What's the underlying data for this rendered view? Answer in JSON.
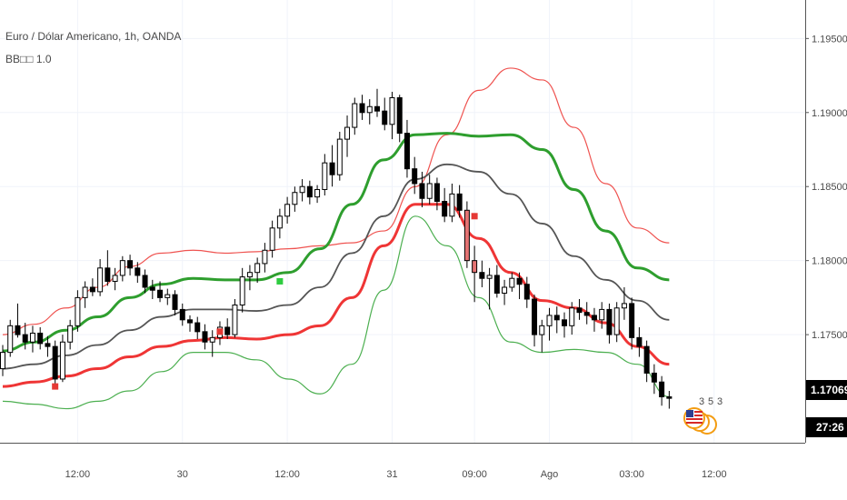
{
  "header": {
    "symbol_line": "Euro / Dólar Americano, 1h, OANDA",
    "indicator_line": "BB□□ 1.0"
  },
  "colors": {
    "up_candle_fill": "#ffffff",
    "down_candle_fill": "#000000",
    "down_candle_alt_fill": "#e57373",
    "outer_upper_band": "#ef5350",
    "inner_upper_band": "#2e9e2e",
    "basis": "#555555",
    "inner_lower_band": "#ef3535",
    "outer_lower_band": "#4caf50",
    "grid": "#f0f3fa",
    "price_badge": "#000000"
  },
  "price_axis": {
    "ticks": [
      "1.19500",
      "1.19000",
      "1.18500",
      "1.18000",
      "1.17500"
    ],
    "tick_values": [
      1.195,
      1.19,
      1.185,
      1.18,
      1.175
    ],
    "current_price": "1.17069",
    "countdown": "27:26"
  },
  "time_axis": {
    "ticks": [
      "12:00",
      "30",
      "12:00",
      "31",
      "09:00",
      "Ago",
      "03:00",
      "12:00"
    ],
    "tick_bars": [
      10,
      24,
      38,
      52,
      63,
      73,
      84,
      95
    ]
  },
  "events": {
    "numbers": [
      "3",
      "5",
      "3"
    ],
    "icon": "us-flag-icon"
  },
  "chart_data": {
    "type": "candlestick",
    "title": "Euro / Dólar Americano, 1h, OANDA",
    "ylim": [
      1.1677,
      1.1976
    ],
    "grid": true,
    "candles": [
      [
        1.1727,
        1.1743,
        1.1722,
        1.1738
      ],
      [
        1.1738,
        1.176,
        1.1735,
        1.1756
      ],
      [
        1.1756,
        1.1771,
        1.1748,
        1.175
      ],
      [
        1.175,
        1.1758,
        1.174,
        1.1745
      ],
      [
        1.1745,
        1.1756,
        1.1738,
        1.1751
      ],
      [
        1.1751,
        1.1755,
        1.174,
        1.1744
      ],
      [
        1.1744,
        1.1749,
        1.1735,
        1.1742
      ],
      [
        1.1742,
        1.1746,
        1.1715,
        1.172
      ],
      [
        1.172,
        1.175,
        1.1718,
        1.1745
      ],
      [
        1.1745,
        1.176,
        1.174,
        1.1756
      ],
      [
        1.1756,
        1.178,
        1.1752,
        1.1775
      ],
      [
        1.1775,
        1.1786,
        1.1768,
        1.1782
      ],
      [
        1.1782,
        1.1788,
        1.1776,
        1.1779
      ],
      [
        1.1779,
        1.1801,
        1.1776,
        1.1795
      ],
      [
        1.1795,
        1.1807,
        1.1783,
        1.1786
      ],
      [
        1.1786,
        1.1795,
        1.178,
        1.179
      ],
      [
        1.179,
        1.1803,
        1.1786,
        1.18
      ],
      [
        1.18,
        1.1804,
        1.179,
        1.1795
      ],
      [
        1.1795,
        1.1799,
        1.1785,
        1.179
      ],
      [
        1.179,
        1.1794,
        1.1778,
        1.1782
      ],
      [
        1.1782,
        1.1787,
        1.1774,
        1.178
      ],
      [
        1.178,
        1.1786,
        1.1772,
        1.1775
      ],
      [
        1.1775,
        1.1781,
        1.177,
        1.1777
      ],
      [
        1.1777,
        1.178,
        1.1763,
        1.1767
      ],
      [
        1.1767,
        1.1771,
        1.1756,
        1.176
      ],
      [
        1.176,
        1.1763,
        1.1752,
        1.1758
      ],
      [
        1.1758,
        1.1762,
        1.1747,
        1.1752
      ],
      [
        1.1752,
        1.1757,
        1.174,
        1.1745
      ],
      [
        1.1745,
        1.1753,
        1.1735,
        1.1748
      ],
      [
        1.1748,
        1.1759,
        1.1743,
        1.1755
      ],
      [
        1.1755,
        1.1761,
        1.1747,
        1.175
      ],
      [
        1.175,
        1.1774,
        1.1748,
        1.177
      ],
      [
        1.177,
        1.1795,
        1.1765,
        1.1789
      ],
      [
        1.1789,
        1.1797,
        1.178,
        1.1792
      ],
      [
        1.1792,
        1.1802,
        1.1785,
        1.1798
      ],
      [
        1.1798,
        1.1812,
        1.1792,
        1.1807
      ],
      [
        1.1807,
        1.1827,
        1.1802,
        1.1822
      ],
      [
        1.1822,
        1.1835,
        1.1815,
        1.183
      ],
      [
        1.183,
        1.1843,
        1.1825,
        1.1838
      ],
      [
        1.1838,
        1.185,
        1.1833,
        1.1846
      ],
      [
        1.1846,
        1.1855,
        1.184,
        1.185
      ],
      [
        1.185,
        1.1854,
        1.1838,
        1.1843
      ],
      [
        1.1843,
        1.1851,
        1.1839,
        1.1848
      ],
      [
        1.1848,
        1.1872,
        1.1844,
        1.1866
      ],
      [
        1.1866,
        1.1878,
        1.185,
        1.1858
      ],
      [
        1.1858,
        1.1887,
        1.1854,
        1.1882
      ],
      [
        1.1882,
        1.1898,
        1.187,
        1.189
      ],
      [
        1.189,
        1.191,
        1.1885,
        1.1906
      ],
      [
        1.1906,
        1.1912,
        1.1895,
        1.19
      ],
      [
        1.19,
        1.1909,
        1.1892,
        1.1904
      ],
      [
        1.1904,
        1.1916,
        1.1897,
        1.1901
      ],
      [
        1.1901,
        1.191,
        1.1888,
        1.1892
      ],
      [
        1.1892,
        1.1914,
        1.1882,
        1.191
      ],
      [
        1.191,
        1.1912,
        1.188,
        1.1886
      ],
      [
        1.1886,
        1.1895,
        1.1856,
        1.1862
      ],
      [
        1.1862,
        1.187,
        1.1845,
        1.1852
      ],
      [
        1.1852,
        1.186,
        1.1836,
        1.1842
      ],
      [
        1.1842,
        1.1858,
        1.1838,
        1.1852
      ],
      [
        1.1852,
        1.1856,
        1.1834,
        1.184
      ],
      [
        1.184,
        1.1849,
        1.1826,
        1.183
      ],
      [
        1.183,
        1.1852,
        1.1826,
        1.1845
      ],
      [
        1.1845,
        1.1851,
        1.1829,
        1.1834
      ],
      [
        1.1834,
        1.184,
        1.1795,
        1.18
      ],
      [
        1.18,
        1.181,
        1.1772,
        1.1792
      ],
      [
        1.1792,
        1.18,
        1.1782,
        1.1788
      ],
      [
        1.1788,
        1.1795,
        1.1767,
        1.179
      ],
      [
        1.179,
        1.1797,
        1.1775,
        1.1778
      ],
      [
        1.1778,
        1.1787,
        1.177,
        1.1782
      ],
      [
        1.1782,
        1.1792,
        1.1779,
        1.1788
      ],
      [
        1.1788,
        1.1792,
        1.1774,
        1.1784
      ],
      [
        1.1784,
        1.1789,
        1.1768,
        1.1774
      ],
      [
        1.1774,
        1.1777,
        1.1742,
        1.175
      ],
      [
        1.175,
        1.176,
        1.1738,
        1.1756
      ],
      [
        1.1756,
        1.1768,
        1.1746,
        1.1763
      ],
      [
        1.1763,
        1.1769,
        1.1751,
        1.176
      ],
      [
        1.176,
        1.1765,
        1.1748,
        1.1756
      ],
      [
        1.1756,
        1.1772,
        1.175,
        1.1768
      ],
      [
        1.1768,
        1.1774,
        1.176,
        1.1765
      ],
      [
        1.1765,
        1.1772,
        1.1757,
        1.1763
      ],
      [
        1.1763,
        1.1768,
        1.1752,
        1.176
      ],
      [
        1.176,
        1.1772,
        1.1754,
        1.1767
      ],
      [
        1.1767,
        1.1771,
        1.1744,
        1.175
      ],
      [
        1.175,
        1.1772,
        1.1745,
        1.1768
      ],
      [
        1.1768,
        1.1782,
        1.176,
        1.1771
      ],
      [
        1.1771,
        1.1775,
        1.174,
        1.1748
      ],
      [
        1.1748,
        1.1755,
        1.1735,
        1.1742
      ],
      [
        1.1742,
        1.1746,
        1.1718,
        1.1724
      ],
      [
        1.1724,
        1.173,
        1.171,
        1.1718
      ],
      [
        1.1718,
        1.1722,
        1.1702,
        1.1708
      ],
      [
        1.1708,
        1.1712,
        1.17,
        1.1707
      ]
    ],
    "bands": {
      "outer_upper": [
        1.175,
        1.1757,
        1.1768,
        1.1782,
        1.1796,
        1.1805,
        1.1807,
        1.1805,
        1.1806,
        1.1808,
        1.181,
        1.1812,
        1.182,
        1.185,
        1.1885,
        1.1915,
        1.193,
        1.1922,
        1.189,
        1.1852,
        1.1822,
        1.1812
      ],
      "inner_upper": [
        1.1739,
        1.1745,
        1.1753,
        1.1762,
        1.1775,
        1.1784,
        1.1788,
        1.1787,
        1.1787,
        1.1792,
        1.1808,
        1.1838,
        1.1868,
        1.1885,
        1.1886,
        1.1884,
        1.1885,
        1.1875,
        1.1848,
        1.182,
        1.1795,
        1.1787
      ],
      "basis": [
        1.1727,
        1.173,
        1.1736,
        1.1743,
        1.1753,
        1.1762,
        1.1767,
        1.1767,
        1.1766,
        1.177,
        1.1782,
        1.1805,
        1.183,
        1.1855,
        1.1865,
        1.186,
        1.1845,
        1.1825,
        1.1803,
        1.1787,
        1.1773,
        1.176
      ],
      "inner_lower": [
        1.1715,
        1.1718,
        1.1722,
        1.1727,
        1.1735,
        1.1742,
        1.1746,
        1.1748,
        1.1747,
        1.175,
        1.1756,
        1.1775,
        1.181,
        1.1838,
        1.1838,
        1.1815,
        1.1792,
        1.1773,
        1.1768,
        1.1758,
        1.1742,
        1.173
      ],
      "outer_lower": [
        1.1705,
        1.1703,
        1.17,
        1.1705,
        1.1712,
        1.1725,
        1.1738,
        1.1738,
        1.1733,
        1.172,
        1.171,
        1.173,
        1.178,
        1.183,
        1.181,
        1.1775,
        1.1745,
        1.1738,
        1.174,
        1.1738,
        1.173,
        1.1708
      ]
    },
    "signals": [
      {
        "bar": 7,
        "price": 1.1715,
        "color": "#e53935"
      },
      {
        "bar": 29,
        "price": 1.1752,
        "color": "#e53935"
      },
      {
        "bar": 37,
        "price": 1.1786,
        "color": "#2ecc40"
      },
      {
        "bar": 63,
        "price": 1.183,
        "color": "#e53935"
      }
    ]
  }
}
